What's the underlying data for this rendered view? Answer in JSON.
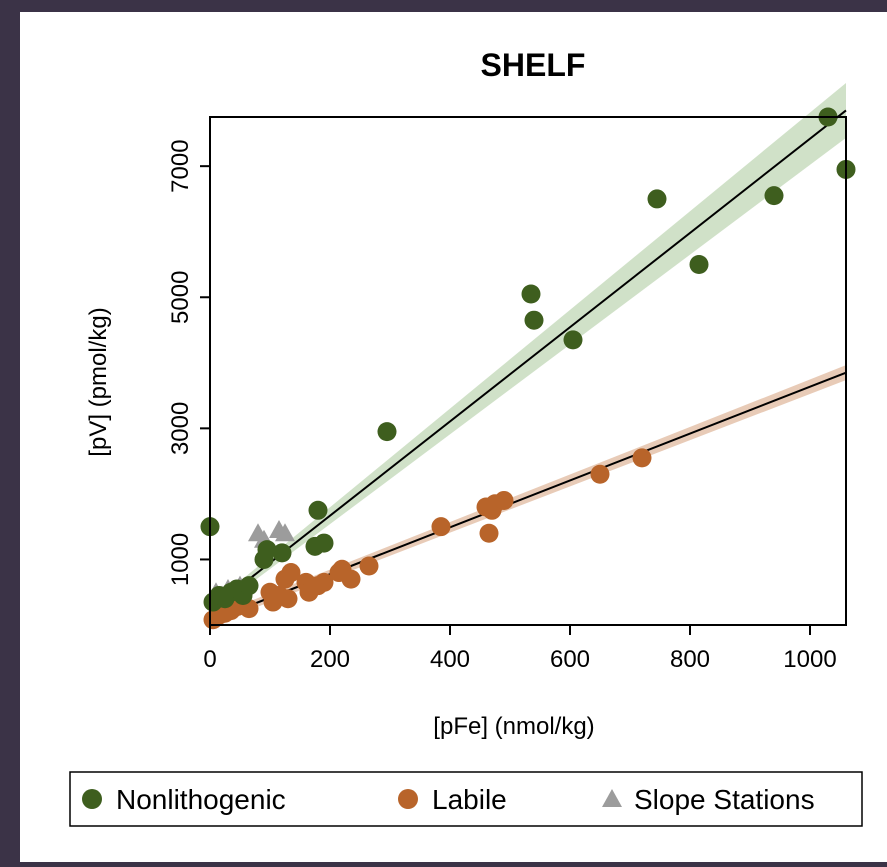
{
  "chart_data": {
    "type": "scatter",
    "title": "SHELF",
    "xlabel": "[pFe] (nmol/kg)",
    "ylabel": "[pV] (pmol/kg)",
    "xlim": [
      0,
      1060
    ],
    "ylim": [
      0,
      7750
    ],
    "x_ticks": [
      0,
      200,
      400,
      600,
      800,
      1000
    ],
    "y_ticks": [
      1000,
      3000,
      5000,
      7000
    ],
    "x_tick_labels": [
      "0",
      "200",
      "400",
      "600",
      "800",
      "1000"
    ],
    "y_tick_labels": [
      "1000",
      "3000",
      "5000",
      "7000"
    ],
    "grid": false,
    "legend_position": "bottom",
    "series": [
      {
        "name": "Nonlithogenic",
        "marker": "circle",
        "color": "#3e5e1e",
        "points": [
          [
            0,
            1500
          ],
          [
            5,
            350
          ],
          [
            15,
            450
          ],
          [
            25,
            400
          ],
          [
            35,
            500
          ],
          [
            45,
            550
          ],
          [
            55,
            450
          ],
          [
            65,
            600
          ],
          [
            90,
            1000
          ],
          [
            95,
            1150
          ],
          [
            120,
            1100
          ],
          [
            180,
            1750
          ],
          [
            175,
            1200
          ],
          [
            190,
            1250
          ],
          [
            295,
            2950
          ],
          [
            535,
            5050
          ],
          [
            540,
            4650
          ],
          [
            605,
            4350
          ],
          [
            745,
            6500
          ],
          [
            815,
            5500
          ],
          [
            940,
            6550
          ],
          [
            1030,
            7750
          ],
          [
            1060,
            6950
          ]
        ],
        "fit": {
          "x": [
            0,
            1060
          ],
          "y": [
            230,
            7850
          ]
        },
        "band_color": "#a9c89a"
      },
      {
        "name": "Labile",
        "marker": "circle",
        "color": "#b8642a",
        "points": [
          [
            5,
            80
          ],
          [
            15,
            150
          ],
          [
            25,
            180
          ],
          [
            35,
            220
          ],
          [
            45,
            280
          ],
          [
            55,
            300
          ],
          [
            65,
            250
          ],
          [
            100,
            500
          ],
          [
            105,
            350
          ],
          [
            115,
            450
          ],
          [
            125,
            700
          ],
          [
            130,
            400
          ],
          [
            135,
            800
          ],
          [
            160,
            650
          ],
          [
            165,
            500
          ],
          [
            180,
            600
          ],
          [
            190,
            650
          ],
          [
            215,
            800
          ],
          [
            220,
            850
          ],
          [
            235,
            700
          ],
          [
            265,
            900
          ],
          [
            385,
            1500
          ],
          [
            460,
            1800
          ],
          [
            465,
            1400
          ],
          [
            470,
            1750
          ],
          [
            475,
            1850
          ],
          [
            490,
            1900
          ],
          [
            650,
            2300
          ],
          [
            720,
            2550
          ]
        ],
        "fit": {
          "x": [
            0,
            1060
          ],
          "y": [
            60,
            3850
          ]
        },
        "band_color": "#d6a07c"
      },
      {
        "name": "Slope Stations",
        "marker": "triangle",
        "color": "#9c9c9c",
        "points": [
          [
            10,
            500
          ],
          [
            20,
            450
          ],
          [
            30,
            550
          ],
          [
            50,
            600
          ],
          [
            80,
            1400
          ],
          [
            90,
            1300
          ],
          [
            115,
            1450
          ],
          [
            125,
            1400
          ]
        ]
      }
    ]
  }
}
